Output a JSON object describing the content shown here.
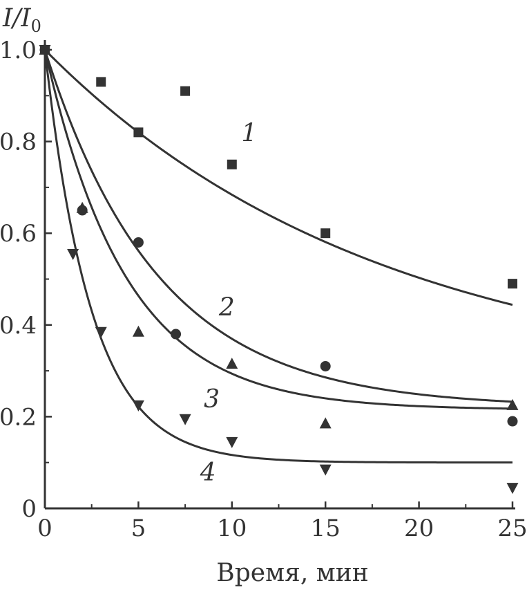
{
  "chart_data": {
    "type": "scatter",
    "xlabel": "Время, мин",
    "ylabel": "I/I",
    "ylabel_subscript": "0",
    "xlim": [
      0,
      25
    ],
    "ylim": [
      0,
      1.0
    ],
    "xticks": [
      "0",
      "5",
      "10",
      "15",
      "20",
      "25"
    ],
    "yticks": [
      "0",
      "0.2",
      "0.4",
      "0.6",
      "0.8",
      "1.0"
    ],
    "grid": false,
    "legend": "none",
    "series": [
      {
        "name": "1",
        "marker": "square",
        "x": [
          0,
          3,
          5,
          7.5,
          10,
          15,
          25
        ],
        "y": [
          1.0,
          0.93,
          0.82,
          0.91,
          0.75,
          0.6,
          0.49
        ],
        "fit": {
          "y_inf": 0.26,
          "k": 0.0557
        },
        "label_at": [
          10.5,
          0.8
        ]
      },
      {
        "name": "2",
        "marker": "circle",
        "x": [
          0,
          2,
          5,
          7,
          15,
          25
        ],
        "y": [
          1.0,
          0.65,
          0.58,
          0.38,
          0.31,
          0.19
        ],
        "fit": {
          "y_inf": 0.22,
          "k": 0.165
        },
        "label_at": [
          9.3,
          0.42
        ]
      },
      {
        "name": "3",
        "marker": "triangle-up",
        "x": [
          0,
          2,
          5,
          10,
          15,
          25
        ],
        "y": [
          1.0,
          0.655,
          0.385,
          0.315,
          0.185,
          0.225
        ],
        "fit": {
          "y_inf": 0.215,
          "k": 0.23
        },
        "label_at": [
          8.5,
          0.22
        ]
      },
      {
        "name": "4",
        "marker": "triangle-down",
        "x": [
          0,
          1.5,
          3,
          5,
          7.5,
          10,
          15,
          25
        ],
        "y": [
          1.0,
          0.555,
          0.385,
          0.225,
          0.195,
          0.145,
          0.085,
          0.045
        ],
        "fit": {
          "y_inf": 0.1,
          "k": 0.4
        },
        "label_at": [
          8.3,
          0.06
        ]
      }
    ]
  }
}
